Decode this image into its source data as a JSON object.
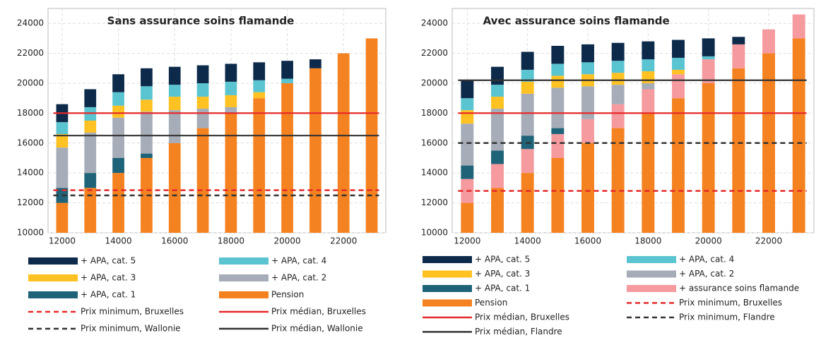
{
  "chart_data": [
    {
      "type": "bar",
      "title": "Sans assurance soins flamande",
      "categories": [
        12000,
        null,
        14000,
        null,
        16000,
        null,
        18000,
        null,
        20000,
        null,
        22000,
        null
      ],
      "ylim": [
        10000,
        25000
      ],
      "yticks": [
        10000,
        12000,
        14000,
        16000,
        18000,
        20000,
        22000,
        24000
      ],
      "grid": true,
      "series": [
        {
          "name": "Pension",
          "color": "#f58220",
          "values": [
            12000,
            13000,
            14000,
            15000,
            16000,
            17000,
            18000,
            19000,
            20000,
            21000,
            22000,
            23000
          ]
        },
        {
          "name": "+ APA, cat. 1",
          "color": "#1e6378",
          "values": [
            1000,
            1000,
            1000,
            300,
            0,
            0,
            0,
            0,
            0,
            0,
            0,
            0
          ]
        },
        {
          "name": "+ APA, cat. 2",
          "color": "#a6adb8",
          "values": [
            2700,
            2700,
            2700,
            2800,
            2200,
            1300,
            400,
            0,
            0,
            0,
            0,
            0
          ]
        },
        {
          "name": "+ APA, cat. 3",
          "color": "#ffc222",
          "values": [
            900,
            800,
            800,
            800,
            900,
            800,
            800,
            400,
            0,
            0,
            0,
            0
          ]
        },
        {
          "name": "+ APA, cat. 4",
          "color": "#5bc4d1",
          "values": [
            800,
            900,
            900,
            900,
            800,
            900,
            900,
            800,
            300,
            0,
            0,
            0
          ]
        },
        {
          "name": "+ APA, cat. 5",
          "color": "#0d2a4a",
          "values": [
            1200,
            1200,
            1200,
            1200,
            1200,
            1200,
            1200,
            1200,
            1200,
            600,
            0,
            0
          ]
        }
      ],
      "lines": [
        {
          "name": "Prix minimum, Bruxelles",
          "color": "#e52a2a",
          "dashed": true,
          "value": 12850
        },
        {
          "name": "Prix médian, Bruxelles",
          "color": "#e52a2a",
          "dashed": false,
          "value": 18000
        },
        {
          "name": "Prix minimum, Wallonie",
          "color": "#333333",
          "dashed": true,
          "value": 12500
        },
        {
          "name": "Prix médian, Wallonie",
          "color": "#333333",
          "dashed": false,
          "value": 16500
        }
      ]
    },
    {
      "type": "bar",
      "title": "Avec assurance soins flamande",
      "categories": [
        12000,
        null,
        14000,
        null,
        16000,
        null,
        18000,
        null,
        20000,
        null,
        22000,
        null
      ],
      "ylim": [
        10000,
        25000
      ],
      "yticks": [
        10000,
        12000,
        14000,
        16000,
        18000,
        20000,
        22000,
        24000
      ],
      "grid": true,
      "series": [
        {
          "name": "Pension",
          "color": "#f58220",
          "values": [
            12000,
            13000,
            14000,
            15000,
            16000,
            17000,
            18000,
            19000,
            20000,
            21000,
            22000,
            23000
          ]
        },
        {
          "name": "+ assurance soins flamande",
          "color": "#f59a9e",
          "values": [
            1600,
            1600,
            1600,
            1600,
            1600,
            1600,
            1600,
            1600,
            1600,
            1600,
            1600,
            1600
          ]
        },
        {
          "name": "+ APA, cat. 1",
          "color": "#1e6378",
          "values": [
            900,
            900,
            900,
            400,
            0,
            0,
            0,
            0,
            0,
            0,
            0,
            0
          ]
        },
        {
          "name": "+ APA, cat. 2",
          "color": "#a6adb8",
          "values": [
            2800,
            2800,
            2800,
            2700,
            2200,
            1300,
            400,
            0,
            0,
            0,
            0,
            0
          ]
        },
        {
          "name": "+ APA, cat. 3",
          "color": "#ffc222",
          "values": [
            900,
            800,
            800,
            800,
            800,
            800,
            800,
            300,
            0,
            0,
            0,
            0
          ]
        },
        {
          "name": "+ APA, cat. 4",
          "color": "#5bc4d1",
          "values": [
            800,
            800,
            800,
            800,
            800,
            800,
            800,
            800,
            200,
            0,
            0,
            0
          ]
        },
        {
          "name": "+ APA, cat. 5",
          "color": "#0d2a4a",
          "values": [
            1200,
            1200,
            1200,
            1200,
            1200,
            1200,
            1200,
            1200,
            1200,
            500,
            0,
            0
          ]
        }
      ],
      "lines": [
        {
          "name": "Prix minimum, Bruxelles",
          "color": "#e52a2a",
          "dashed": true,
          "value": 12800
        },
        {
          "name": "Prix médian, Bruxelles",
          "color": "#e52a2a",
          "dashed": false,
          "value": 18000
        },
        {
          "name": "Prix minimum, Flandre",
          "color": "#333333",
          "dashed": true,
          "value": 16000
        },
        {
          "name": "Prix médian, Flandre",
          "color": "#333333",
          "dashed": false,
          "value": 20200
        }
      ]
    }
  ]
}
